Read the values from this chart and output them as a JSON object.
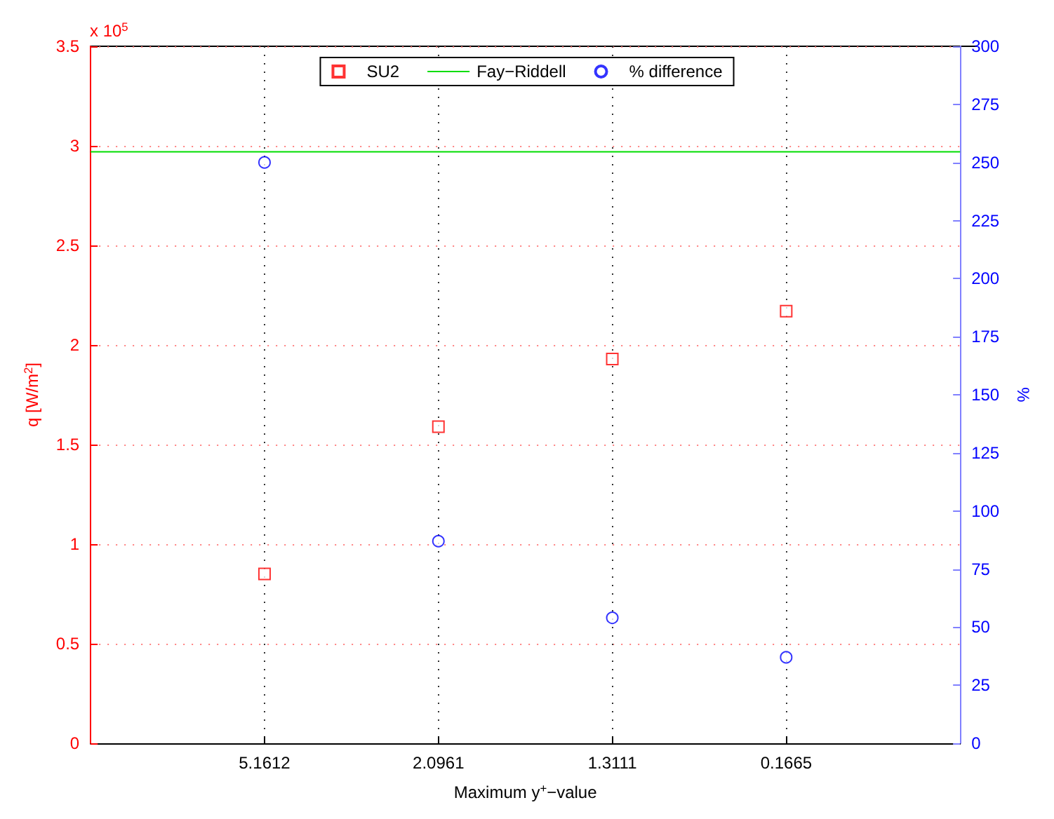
{
  "chart_data": {
    "type": "scatter",
    "xlabel": "Maximum y$^{+}$−value",
    "ylabel": "q [W/m$^{2}$]",
    "y2label": "%",
    "annotations": [
      "x 10$^{5}$"
    ],
    "categories": [
      null,
      "5.1612",
      "2.0961",
      "1.3111",
      "0.1665",
      null
    ],
    "series": [
      {
        "name": "SU2",
        "marker": "square",
        "color": "#ff0000",
        "values": [
          null,
          0.85,
          1.59,
          1.93,
          2.17,
          null
        ]
      },
      {
        "name": "Fay−Riddell",
        "type": "line",
        "marker": "none",
        "color": "#00dd00",
        "values": [
          2.97,
          2.97,
          2.97,
          2.97,
          2.97,
          2.97
        ]
      },
      {
        "name": "% difference",
        "marker": "circle",
        "axis": "y2",
        "color": "#0000ff",
        "values": [
          null,
          250,
          87,
          54,
          37,
          null
        ]
      }
    ],
    "ylim": [
      0,
      3.5
    ],
    "yticks": [
      0,
      0.5,
      1,
      1.5,
      2,
      2.5,
      3,
      3.5
    ],
    "y2lim": [
      0,
      300
    ],
    "y2ticks": [
      0,
      25,
      50,
      75,
      100,
      125,
      150,
      175,
      200,
      225,
      250,
      275,
      300
    ],
    "grid": true,
    "legend": "top"
  }
}
